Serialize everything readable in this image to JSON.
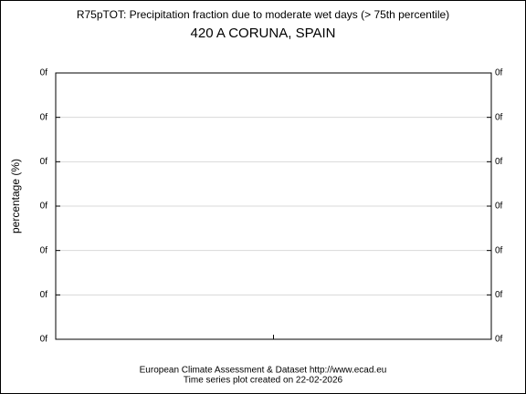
{
  "chart_data": {
    "type": "line",
    "title": "R75pTOT: Precipitation fraction due to moderate wet days (> 75th percentile)",
    "subtitle": "420 A CORUNA, SPAIN",
    "ylabel": "percentage (%)",
    "y_tick_labels": [
      "0f",
      "0f",
      "0f",
      "0f",
      "0f",
      "0f",
      "0f"
    ],
    "grid": true,
    "footer": [
      "European Climate Assessment & Dataset  http://www.ecad.eu",
      "Time series plot created on 22-02-2026"
    ]
  }
}
